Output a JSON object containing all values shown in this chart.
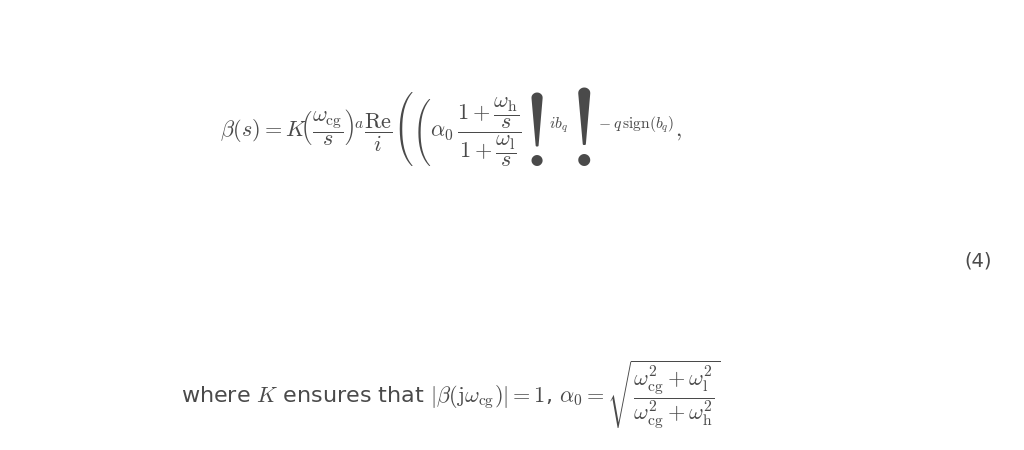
{
  "background_color": "#ffffff",
  "fig_width": 10.24,
  "fig_height": 4.5,
  "dpi": 100,
  "equation1": "$\\beta(s) = K\\!\\left(\\dfrac{\\omega_{\\mathrm{cg}}}{s}\\right)^{\\!a}\\dfrac{\\mathrm{Re}}{i}\\left(\\left(\\alpha_0\\,\\dfrac{1+\\dfrac{\\omega_{\\mathrm{h}}}{s}}{1+\\dfrac{\\omega_{\\mathrm{l}}}{s}}\\right)^{\\!ib_q}\\right)^{\\!-q\\,\\mathrm{sign}(b_q)},$",
  "equation2": "where $K$ ensures that $|\\beta(\\mathrm{j}\\omega_{\\mathrm{cg}})| = 1$, $\\alpha_0 = \\sqrt{\\dfrac{\\omega_{\\mathrm{cg}}^2+\\omega_{\\mathrm{l}}^2}{\\omega_{\\mathrm{cg}}^2+\\omega_{\\mathrm{h}}^2}}$",
  "eq_number": "(4)",
  "text_color": "#4a4a4a",
  "fontsize_main": 16,
  "fontsize_eq_num": 14
}
